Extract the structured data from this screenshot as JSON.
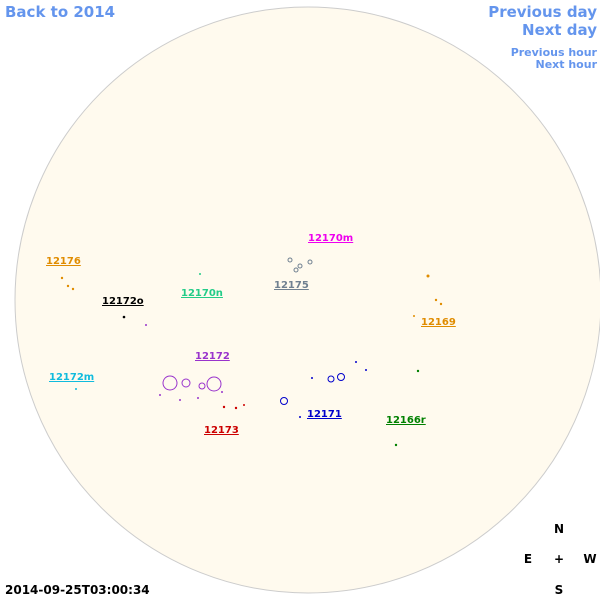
{
  "nav": {
    "back": "Back to 2014",
    "previous_day": "Previous day",
    "next_day": "Next day",
    "previous_hour": "Previous hour",
    "next_hour": "Next hour"
  },
  "regions": [
    {
      "label": "12176",
      "color": "#e08c00"
    },
    {
      "label": "12172o",
      "color": "#000000"
    },
    {
      "label": "12170n",
      "color": "#22cc88"
    },
    {
      "label": "12170m",
      "color": "#ee00ee"
    },
    {
      "label": "12175",
      "color": "#708090"
    },
    {
      "label": "12169",
      "color": "#e08c00"
    },
    {
      "label": "12172",
      "color": "#9933cc"
    },
    {
      "label": "12172m",
      "color": "#11bbdd"
    },
    {
      "label": "12173",
      "color": "#cc0000"
    },
    {
      "label": "12171",
      "color": "#0000cc"
    },
    {
      "label": "12166r",
      "color": "#008000"
    }
  ],
  "compass": {
    "north": "N",
    "east": "E",
    "center": "+",
    "west": "W",
    "south": "S"
  },
  "timestamp": "2014-09-25T03:00:34"
}
